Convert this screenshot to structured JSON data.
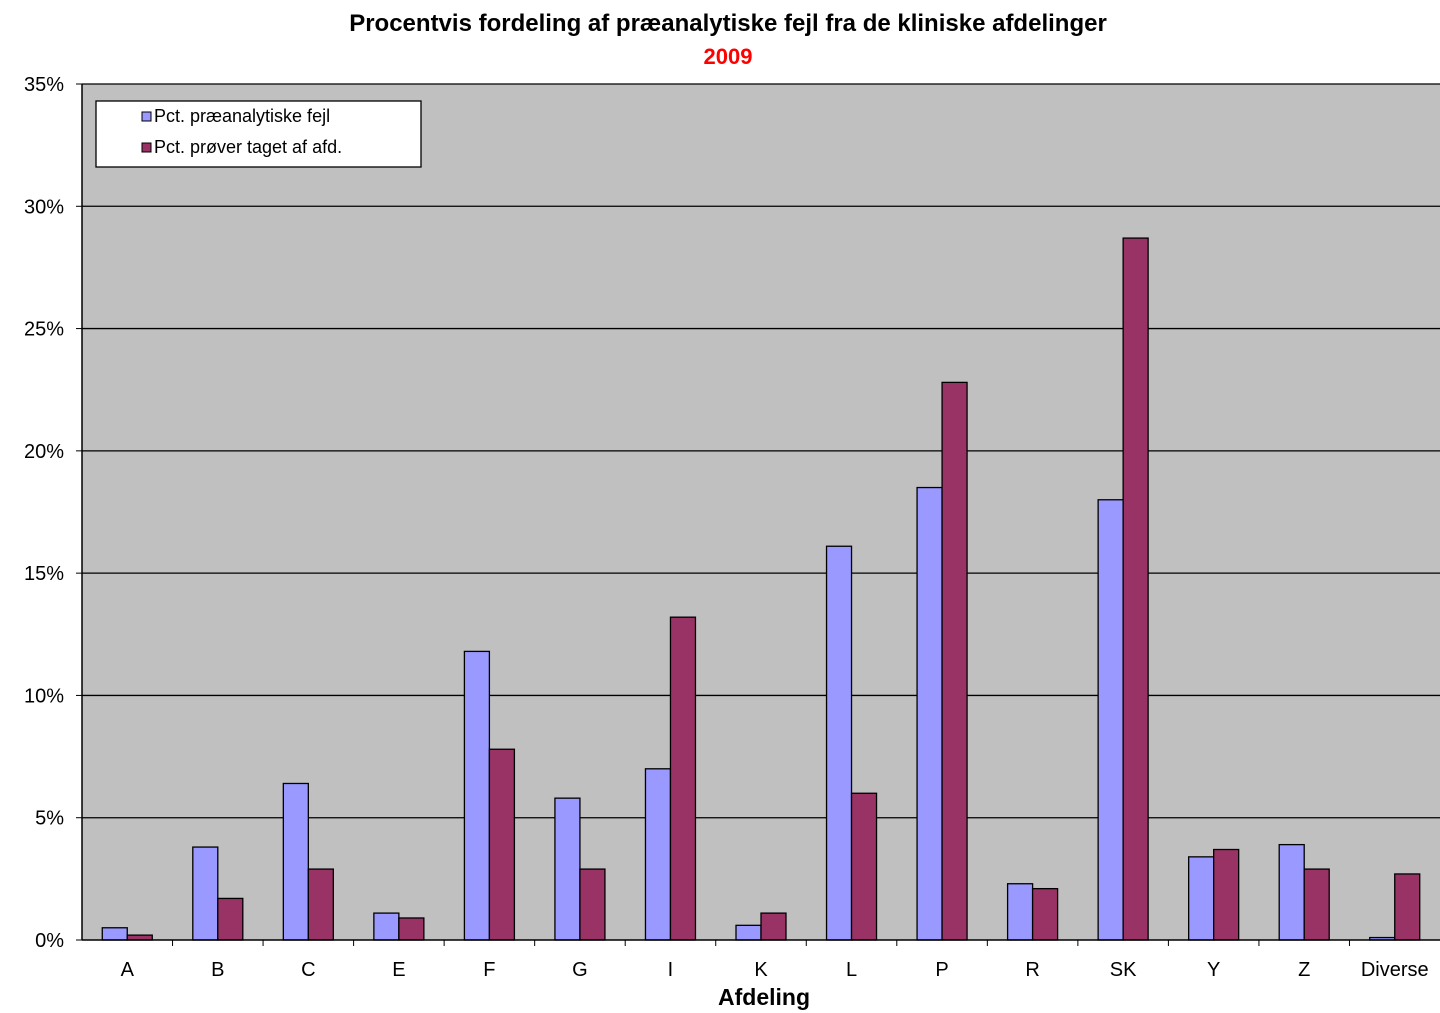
{
  "chart_data": {
    "type": "bar",
    "title": "Procentvis fordeling af præanalytiske fejl fra de kliniske afdelinger",
    "subtitle": "2009",
    "xlabel": "Afdeling",
    "ylabel": "",
    "ylim": [
      0,
      35
    ],
    "yticks": [
      "0%",
      "5%",
      "10%",
      "15%",
      "20%",
      "25%",
      "30%",
      "35%"
    ],
    "grid": true,
    "legend_position": "top-left",
    "categories": [
      "A",
      "B",
      "C",
      "E",
      "F",
      "G",
      "I",
      "K",
      "L",
      "P",
      "R",
      "SK",
      "Y",
      "Z",
      "Diverse"
    ],
    "series": [
      {
        "name": "Pct. præanalytiske fejl",
        "color": "#9999ff",
        "values": [
          0.5,
          3.8,
          6.4,
          1.1,
          11.8,
          5.8,
          7.0,
          0.6,
          16.1,
          18.5,
          2.3,
          18.0,
          3.4,
          3.9,
          0.1
        ]
      },
      {
        "name": "Pct. prøver taget af afd.",
        "color": "#993366",
        "values": [
          0.2,
          1.7,
          2.9,
          0.9,
          7.8,
          2.9,
          13.2,
          1.1,
          6.0,
          22.8,
          2.1,
          28.7,
          3.7,
          2.9,
          2.7
        ]
      }
    ]
  }
}
